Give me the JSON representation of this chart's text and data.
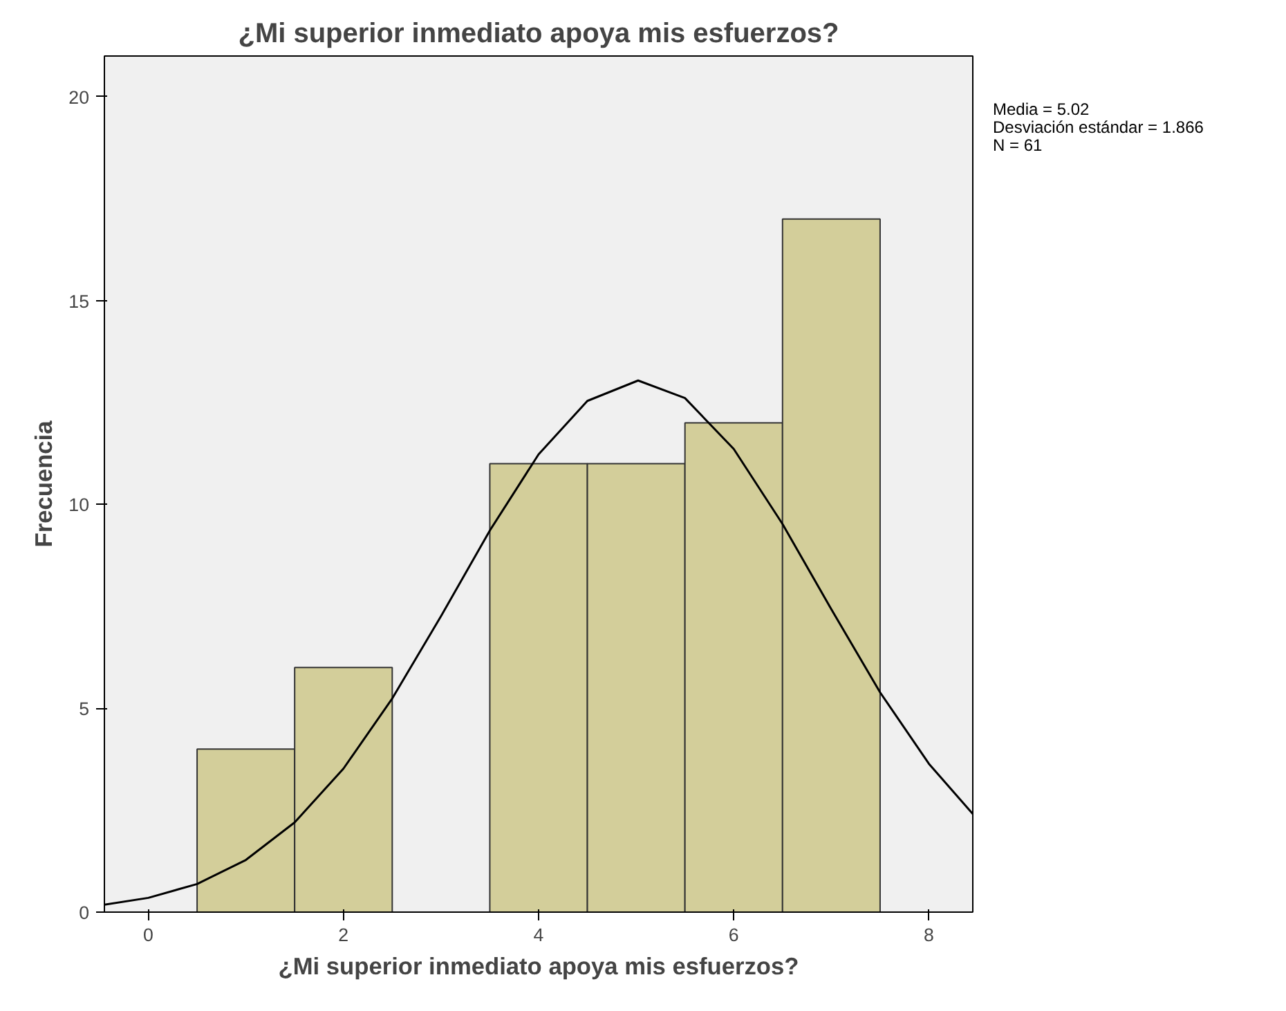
{
  "chart_data": {
    "type": "histogram",
    "title": "¿Mi superior inmediato apoya mis esfuerzos?",
    "xlabel": "¿Mi superior inmediato apoya mis esfuerzos?",
    "ylabel": "Frecuencia",
    "bins": [
      0.5,
      1.5,
      2.5,
      3.5,
      4.5,
      5.5,
      6.5,
      7.5
    ],
    "values": [
      4,
      6,
      0,
      11,
      11,
      12,
      17
    ],
    "color": "#d3ce9a",
    "series": [
      {
        "type": "line",
        "color": "#000000",
        "x": [
          -0.45,
          0,
          0.5,
          1,
          1.5,
          2,
          2.5,
          3,
          3.5,
          4,
          4.5,
          5.02,
          5.5,
          6,
          6.5,
          7,
          7.5,
          8,
          8.45
        ],
        "values": [
          0.18,
          0.35,
          0.69,
          1.28,
          2.2,
          3.52,
          5.24,
          7.26,
          9.36,
          11.23,
          12.54,
          13.04,
          12.61,
          11.36,
          9.52,
          7.43,
          5.39,
          3.64,
          2.41
        ]
      }
    ],
    "xlim": [
      -0.45,
      8.45
    ],
    "ylim": [
      0,
      21
    ],
    "xticks": [
      0,
      2,
      4,
      6,
      8
    ],
    "yticks": [
      0,
      5,
      10,
      15,
      20
    ],
    "annotations": [
      "Media = 5.02",
      "Desviación estándar = 1.866",
      "N = 61"
    ]
  }
}
